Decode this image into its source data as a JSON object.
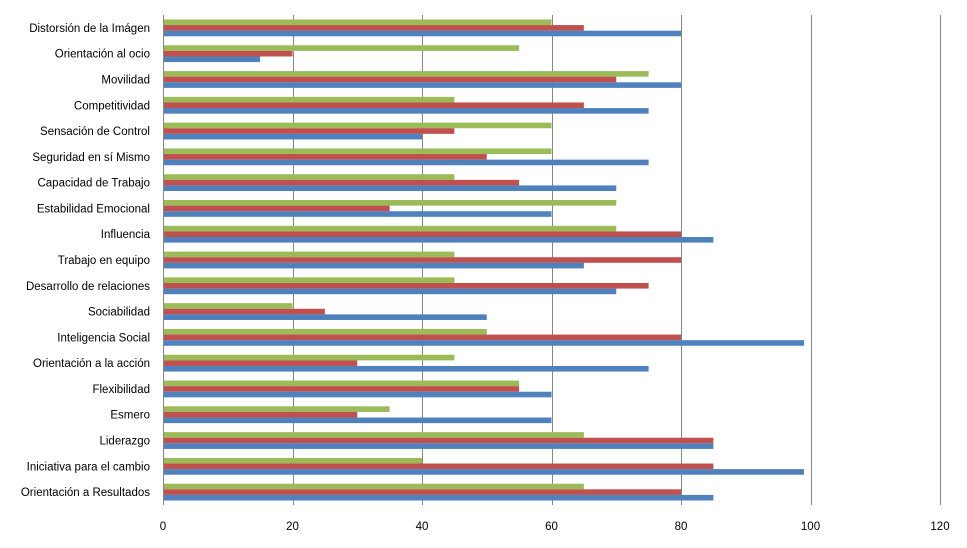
{
  "chart_data": {
    "type": "bar",
    "orientation": "horizontal",
    "grid": true,
    "legend": "none",
    "xlim": [
      0,
      120
    ],
    "xticks": [
      0,
      20,
      40,
      60,
      80,
      100,
      120
    ],
    "categories": [
      "Distorsión de la Imágen",
      "Orientación al ocio",
      "Movilidad",
      "Competitividad",
      "Sensación de Control",
      "Seguridad en sí Mismo",
      "Capacidad de Trabajo",
      "Estabilidad  Emocional",
      "Influencia",
      "Trabajo en equipo",
      "Desarrollo de relaciones",
      "Sociabilidad",
      "Inteligencia Social",
      "Orientación a la acción",
      "Flexibilidad",
      "Esmero",
      "Liderazgo",
      "Iniciativa para el cambio",
      "Orientación a Resultados"
    ],
    "series": [
      {
        "color": "#9bbb59",
        "values": [
          60,
          55,
          75,
          45,
          60,
          60,
          45,
          70,
          70,
          45,
          45,
          20,
          50,
          45,
          55,
          35,
          65,
          40,
          65
        ]
      },
      {
        "color": "#c0504d",
        "values": [
          65,
          20,
          70,
          65,
          45,
          50,
          55,
          35,
          80,
          80,
          75,
          25,
          80,
          30,
          55,
          30,
          85,
          85,
          80
        ]
      },
      {
        "color": "#4f81bd",
        "values": [
          80,
          15,
          80,
          75,
          40,
          75,
          70,
          60,
          85,
          65,
          70,
          50,
          99,
          75,
          60,
          60,
          85,
          99,
          85
        ]
      }
    ]
  }
}
